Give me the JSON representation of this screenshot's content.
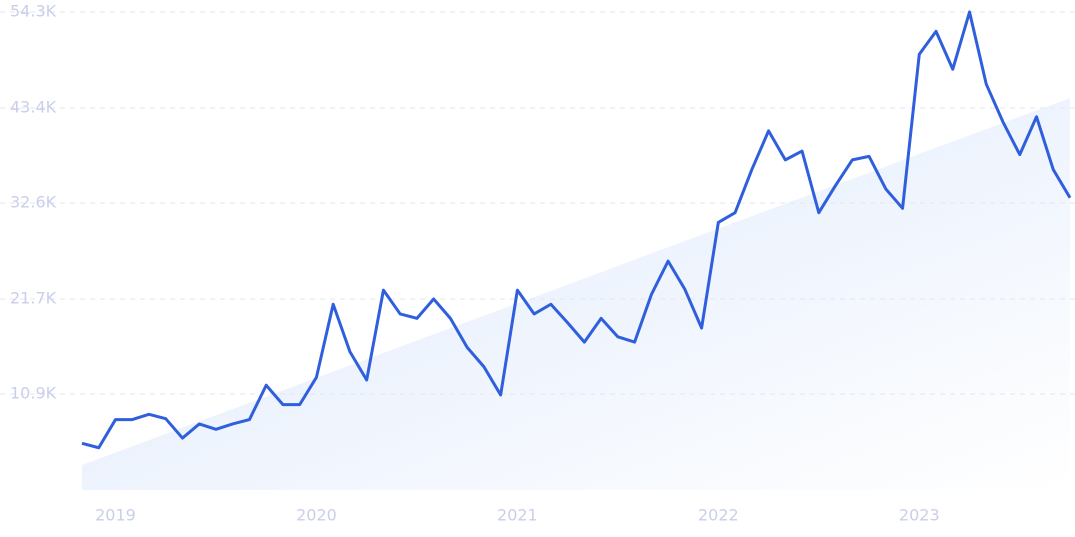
{
  "chart_data": {
    "type": "line",
    "categories": [
      null,
      null,
      "2019",
      null,
      null,
      null,
      null,
      null,
      null,
      null,
      null,
      null,
      null,
      null,
      "2020",
      null,
      null,
      null,
      null,
      null,
      null,
      null,
      null,
      null,
      null,
      null,
      "2021",
      null,
      null,
      null,
      null,
      null,
      null,
      null,
      null,
      null,
      null,
      null,
      "2022",
      null,
      null,
      null,
      null,
      null,
      null,
      null,
      null,
      null,
      null,
      null,
      "2023",
      null,
      null,
      null,
      null,
      null,
      null,
      null,
      null,
      null
    ],
    "series": [
      {
        "color": "#2f5fdc",
        "values": [
          5300,
          4800,
          8000,
          8000,
          8600,
          8100,
          5900,
          7500,
          6900,
          7500,
          8000,
          11900,
          9700,
          9700,
          12800,
          21100,
          15700,
          12500,
          22700,
          20000,
          19500,
          21700,
          19500,
          16200,
          14000,
          10800,
          22700,
          20000,
          21100,
          19000,
          16800,
          19500,
          17400,
          16800,
          22200,
          26000,
          22800,
          18400,
          30400,
          31500,
          36400,
          40800,
          37500,
          38500,
          31500,
          34600,
          37500,
          37900,
          34200,
          32000,
          49500,
          52100,
          47800,
          54300,
          46100,
          41800,
          38100,
          42400,
          36400,
          33200
        ]
      }
    ],
    "ylim": [
      0,
      54300
    ],
    "yticks": [
      {
        "value": 10900,
        "label": "10.9K"
      },
      {
        "value": 21700,
        "label": "21.7K"
      },
      {
        "value": 32600,
        "label": "32.6K"
      },
      {
        "value": 43400,
        "label": "43.4K"
      },
      {
        "value": 54300,
        "label": "54.3K"
      }
    ],
    "grid": true
  }
}
